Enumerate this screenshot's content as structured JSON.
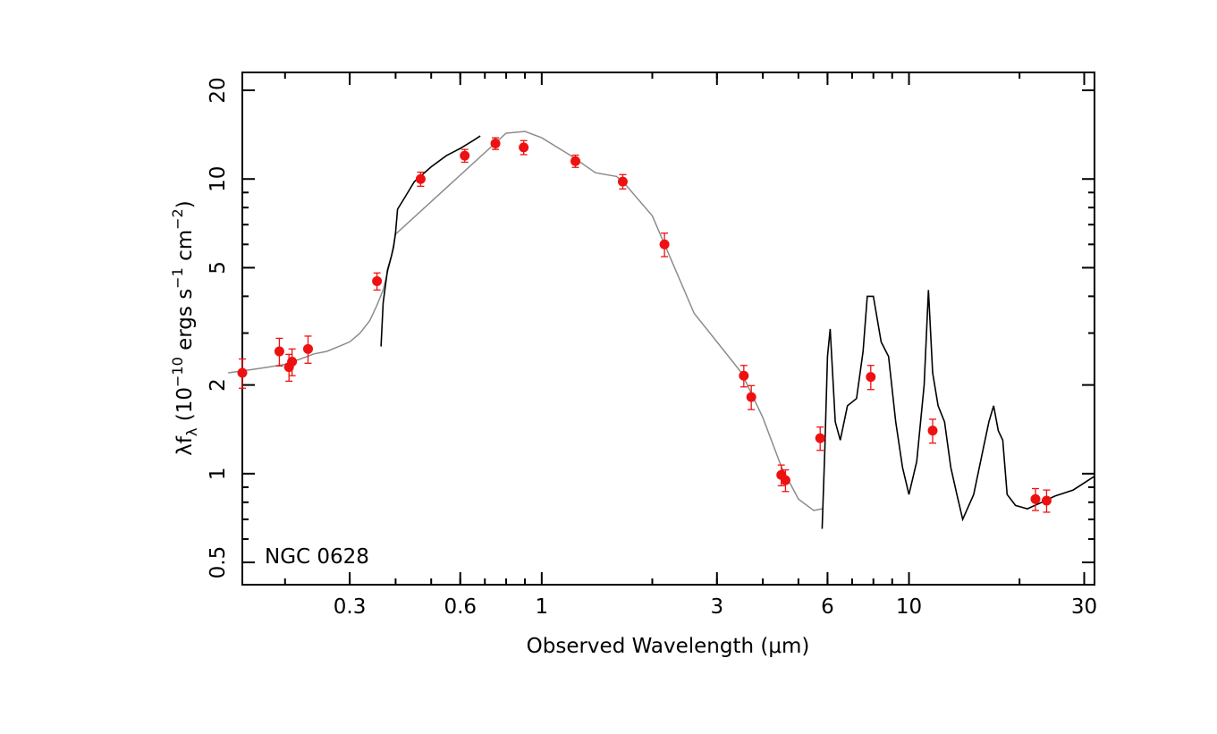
{
  "chart_data": {
    "type": "scatter",
    "title": "",
    "annotation": "NGC 0628",
    "xlabel": "Observed Wavelength (μm)",
    "ylabel": "λfλ (10⁻¹⁰ ergs s⁻¹ cm⁻²)",
    "ylabel_parts": {
      "lambda": "λ",
      "f": "f",
      "sub": "λ",
      "open": " (10",
      "exp1": "−10",
      "mid": " ergs s",
      "exp2": "−1",
      "mid2": " cm",
      "exp3": "−2",
      "close": ")"
    },
    "x_scale": "log",
    "y_scale": "log",
    "xlim": [
      0.153,
      32
    ],
    "ylim": [
      0.42,
      23
    ],
    "x_ticks": [
      0.3,
      0.6,
      1,
      3,
      6,
      10,
      30
    ],
    "x_tick_labels": [
      "0.3",
      "0.6",
      "1",
      "3",
      "6",
      "10",
      "30"
    ],
    "y_ticks": [
      0.5,
      1,
      2,
      5,
      10,
      20
    ],
    "y_tick_labels": [
      "0.5",
      "1",
      "2",
      "5",
      "10",
      "20"
    ],
    "grid": false,
    "colors": {
      "photometry": "#ee1111",
      "observed_spectrum": "#000000",
      "model_spectrum": "#8c8c8c"
    },
    "series": [
      {
        "kind": "photometry",
        "points": [
          {
            "x": 0.153,
            "y": 2.2,
            "err": 0.25
          },
          {
            "x": 0.193,
            "y": 2.6,
            "err": 0.28
          },
          {
            "x": 0.205,
            "y": 2.3,
            "err": 0.24
          },
          {
            "x": 0.209,
            "y": 2.4,
            "err": 0.25
          },
          {
            "x": 0.231,
            "y": 2.65,
            "err": 0.28
          },
          {
            "x": 0.356,
            "y": 4.5,
            "err": 0.3
          },
          {
            "x": 0.468,
            "y": 10.0,
            "err": 0.55
          },
          {
            "x": 0.617,
            "y": 12.0,
            "err": 0.6
          },
          {
            "x": 0.748,
            "y": 13.2,
            "err": 0.6
          },
          {
            "x": 0.893,
            "y": 12.8,
            "err": 0.7
          },
          {
            "x": 1.235,
            "y": 11.5,
            "err": 0.55
          },
          {
            "x": 1.662,
            "y": 9.8,
            "err": 0.55
          },
          {
            "x": 2.159,
            "y": 6.0,
            "err": 0.55
          },
          {
            "x": 3.55,
            "y": 2.15,
            "err": 0.18
          },
          {
            "x": 3.72,
            "y": 1.82,
            "err": 0.17
          },
          {
            "x": 4.49,
            "y": 0.99,
            "err": 0.08
          },
          {
            "x": 4.61,
            "y": 0.95,
            "err": 0.08
          },
          {
            "x": 5.73,
            "y": 1.32,
            "err": 0.12
          },
          {
            "x": 7.87,
            "y": 2.13,
            "err": 0.2
          },
          {
            "x": 11.6,
            "y": 1.4,
            "err": 0.13
          },
          {
            "x": 22.1,
            "y": 0.82,
            "err": 0.07
          },
          {
            "x": 23.7,
            "y": 0.81,
            "err": 0.07
          }
        ]
      },
      {
        "kind": "model_spectrum",
        "points": [
          [
            0.14,
            2.2
          ],
          [
            0.16,
            2.25
          ],
          [
            0.18,
            2.3
          ],
          [
            0.2,
            2.35
          ],
          [
            0.22,
            2.45
          ],
          [
            0.24,
            2.55
          ],
          [
            0.26,
            2.6
          ],
          [
            0.28,
            2.7
          ],
          [
            0.3,
            2.8
          ],
          [
            0.32,
            3.0
          ],
          [
            0.34,
            3.3
          ],
          [
            0.355,
            3.7
          ],
          [
            0.37,
            4.2
          ],
          [
            0.39,
            5.5
          ],
          [
            0.4,
            6.5
          ],
          [
            0.8,
            14.3
          ],
          [
            0.9,
            14.5
          ],
          [
            1.0,
            13.8
          ],
          [
            1.2,
            12.0
          ],
          [
            1.4,
            10.5
          ],
          [
            1.6,
            10.2
          ],
          [
            1.7,
            9.5
          ],
          [
            2.0,
            7.5
          ],
          [
            2.3,
            5.0
          ],
          [
            2.6,
            3.5
          ],
          [
            3.0,
            2.8
          ],
          [
            3.5,
            2.2
          ],
          [
            4.0,
            1.55
          ],
          [
            4.5,
            1.05
          ],
          [
            5.0,
            0.82
          ],
          [
            5.5,
            0.75
          ],
          [
            5.8,
            0.76
          ]
        ]
      },
      {
        "kind": "observed_spectrum",
        "points": [
          [
            0.365,
            2.7
          ],
          [
            0.37,
            3.8
          ],
          [
            0.38,
            4.9
          ],
          [
            0.39,
            5.5
          ],
          [
            0.395,
            5.9
          ],
          [
            0.4,
            6.6
          ],
          [
            0.405,
            7.9
          ],
          [
            0.42,
            8.5
          ],
          [
            0.45,
            9.8
          ],
          [
            0.5,
            11.0
          ],
          [
            0.55,
            12.0
          ],
          [
            0.6,
            12.7
          ],
          [
            0.65,
            13.5
          ],
          [
            0.68,
            14.0
          ],
          [
            5.8,
            0.65
          ],
          [
            5.9,
            1.2
          ],
          [
            6.0,
            2.5
          ],
          [
            6.1,
            3.1
          ],
          [
            6.3,
            1.5
          ],
          [
            6.5,
            1.3
          ],
          [
            6.8,
            1.7
          ],
          [
            7.2,
            1.8
          ],
          [
            7.5,
            2.6
          ],
          [
            7.7,
            4.0
          ],
          [
            8.0,
            4.0
          ],
          [
            8.4,
            2.8
          ],
          [
            8.8,
            2.5
          ],
          [
            9.2,
            1.5
          ],
          [
            9.6,
            1.05
          ],
          [
            10.0,
            0.85
          ],
          [
            10.5,
            1.1
          ],
          [
            11.0,
            2.0
          ],
          [
            11.3,
            4.2
          ],
          [
            11.6,
            2.2
          ],
          [
            12.0,
            1.7
          ],
          [
            12.5,
            1.5
          ],
          [
            13.0,
            1.05
          ],
          [
            13.5,
            0.85
          ],
          [
            14.0,
            0.7
          ],
          [
            15.0,
            0.85
          ],
          [
            16.0,
            1.25
          ],
          [
            16.5,
            1.5
          ],
          [
            17.0,
            1.7
          ],
          [
            17.5,
            1.4
          ],
          [
            18.0,
            1.3
          ],
          [
            18.5,
            0.85
          ],
          [
            19.5,
            0.78
          ],
          [
            21.0,
            0.76
          ],
          [
            23.0,
            0.8
          ],
          [
            25.0,
            0.84
          ],
          [
            28.0,
            0.88
          ],
          [
            32.0,
            0.98
          ]
        ]
      }
    ]
  }
}
